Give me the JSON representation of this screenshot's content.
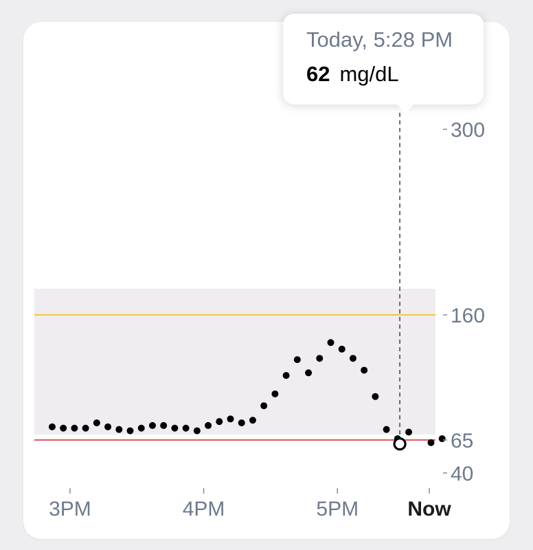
{
  "tooltip": {
    "time_label": "Today, 5:28 PM",
    "value": "62",
    "unit": "mg/dL"
  },
  "colors": {
    "target_band": "#efedef",
    "high_line": "#f2c542",
    "low_line": "#e25a5a",
    "point": "#000000",
    "axis_label": "#6e7a8c",
    "now_label": "#1c1c1e"
  },
  "chart_data": {
    "type": "scatter",
    "x_unit": "time (hour of day, 24h)",
    "y_unit": "mg/dL",
    "xlim": [
      "2:44 PM",
      "5:44 PM"
    ],
    "ylim": [
      40,
      300
    ],
    "y_scale": "nonlinear (piecewise)",
    "y_ticks": [
      300,
      160,
      65,
      40
    ],
    "x_ticks": [
      "3PM",
      "4PM",
      "5PM",
      "Now"
    ],
    "target_range": [
      65,
      180
    ],
    "high_threshold": 160,
    "low_threshold": 65,
    "grid": false,
    "selected_point": {
      "x": "5:28 PM",
      "y": 62
    },
    "points": [
      {
        "x": "2:52 PM",
        "y": 75
      },
      {
        "x": "2:57 PM",
        "y": 74
      },
      {
        "x": "3:02 PM",
        "y": 74
      },
      {
        "x": "3:07 PM",
        "y": 74
      },
      {
        "x": "3:12 PM",
        "y": 78
      },
      {
        "x": "3:17 PM",
        "y": 75
      },
      {
        "x": "3:22 PM",
        "y": 73
      },
      {
        "x": "3:27 PM",
        "y": 72
      },
      {
        "x": "3:32 PM",
        "y": 74
      },
      {
        "x": "3:37 PM",
        "y": 76
      },
      {
        "x": "3:42 PM",
        "y": 76
      },
      {
        "x": "3:47 PM",
        "y": 74
      },
      {
        "x": "3:52 PM",
        "y": 74
      },
      {
        "x": "3:57 PM",
        "y": 72
      },
      {
        "x": "4:02 PM",
        "y": 76
      },
      {
        "x": "4:07 PM",
        "y": 79
      },
      {
        "x": "4:12 PM",
        "y": 81
      },
      {
        "x": "4:17 PM",
        "y": 78
      },
      {
        "x": "4:22 PM",
        "y": 80
      },
      {
        "x": "4:27 PM",
        "y": 91
      },
      {
        "x": "4:32 PM",
        "y": 100
      },
      {
        "x": "4:37 PM",
        "y": 114
      },
      {
        "x": "4:42 PM",
        "y": 126
      },
      {
        "x": "4:47 PM",
        "y": 116
      },
      {
        "x": "4:52 PM",
        "y": 127
      },
      {
        "x": "4:57 PM",
        "y": 139
      },
      {
        "x": "5:02 PM",
        "y": 134
      },
      {
        "x": "5:07 PM",
        "y": 127
      },
      {
        "x": "5:12 PM",
        "y": 118
      },
      {
        "x": "5:17 PM",
        "y": 98
      },
      {
        "x": "5:22 PM",
        "y": 73
      },
      {
        "x": "5:27 PM",
        "y": 66
      },
      {
        "x": "5:32 PM",
        "y": 71
      },
      {
        "x": "5:42 PM",
        "y": 63
      },
      {
        "x": "5:47 PM",
        "y": 66
      }
    ]
  }
}
